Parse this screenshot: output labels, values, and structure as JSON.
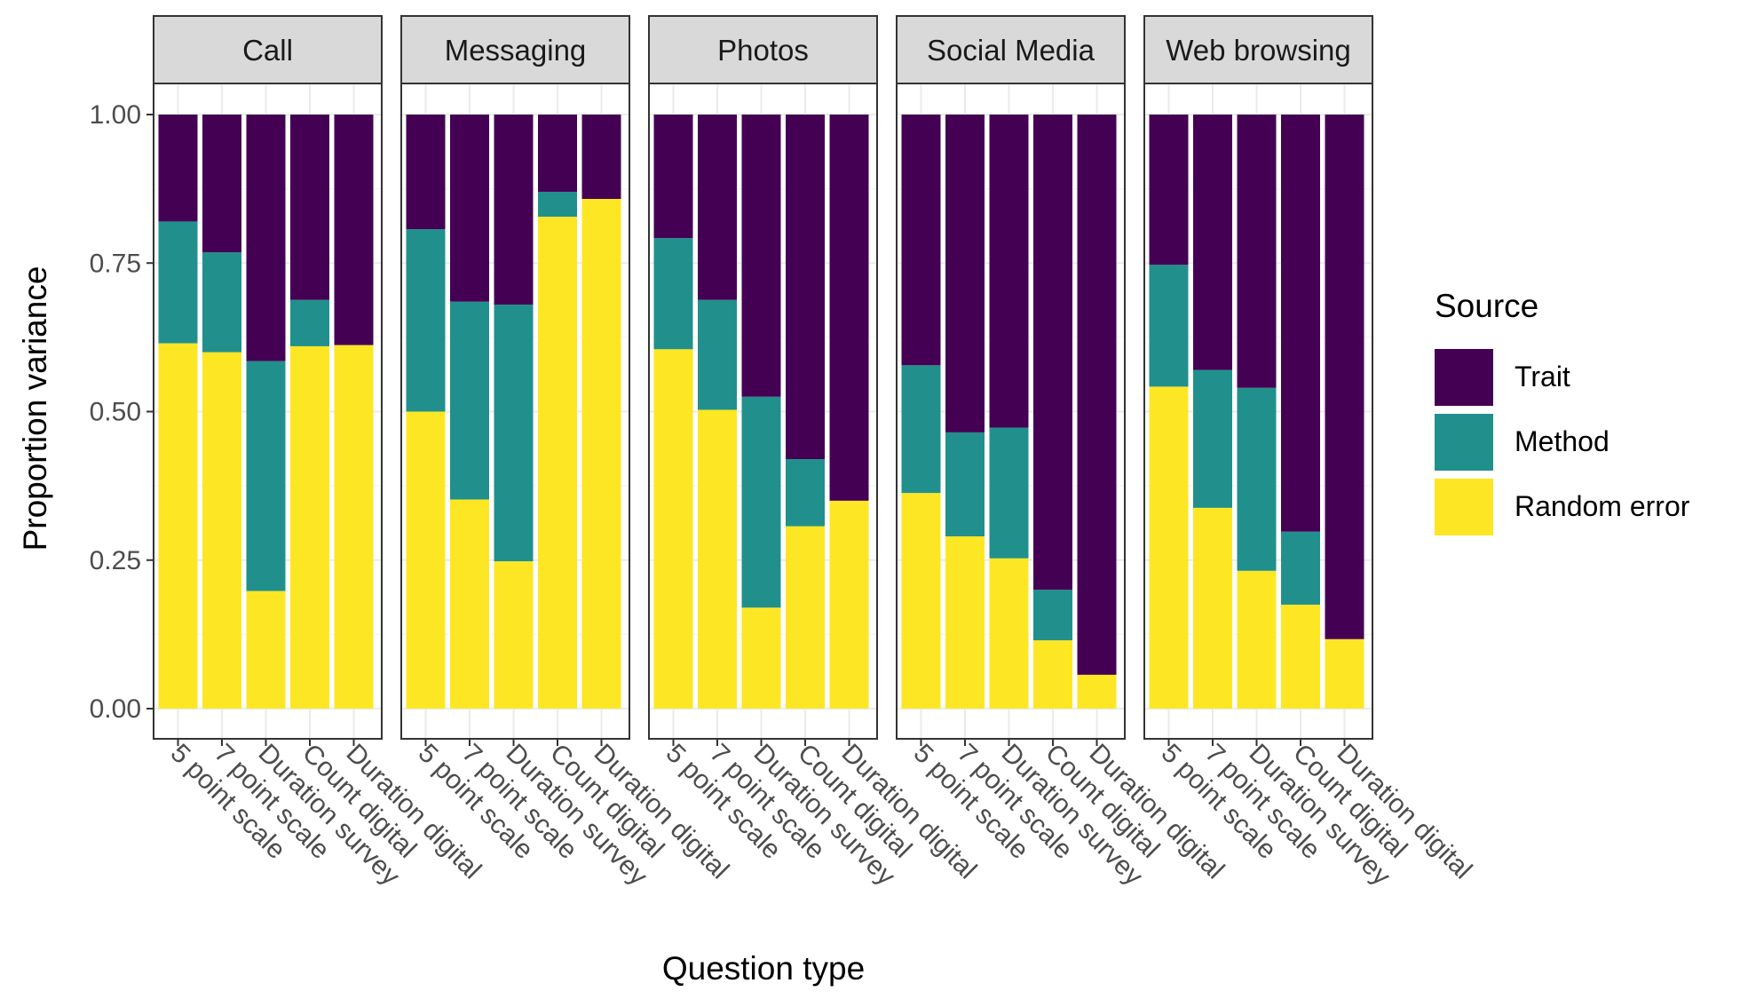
{
  "chart_data": {
    "type": "bar",
    "stacked": true,
    "normalized": true,
    "xlabel": "Question type",
    "ylabel": "Proportion variance",
    "ylim": [
      0,
      1
    ],
    "y_ticks": [
      "0.00",
      "0.25",
      "0.50",
      "0.75",
      "1.00"
    ],
    "grid": true,
    "legend": {
      "title": "Source",
      "position": "right",
      "entries": [
        {
          "name": "Trait",
          "color": "#440154"
        },
        {
          "name": "Method",
          "color": "#21908C"
        },
        {
          "name": "Random error",
          "color": "#FDE725"
        }
      ]
    },
    "categories": [
      "5 point scale",
      "7 point scale",
      "Duration survey",
      "Count digital",
      "Duration digital"
    ],
    "panels": [
      {
        "name": "Call",
        "series": [
          {
            "name": "Random error",
            "values": [
              0.615,
              0.6,
              0.198,
              0.61,
              0.612
            ]
          },
          {
            "name": "Method",
            "values": [
              0.205,
              0.168,
              0.387,
              0.078,
              0.0
            ]
          },
          {
            "name": "Trait",
            "values": [
              0.18,
              0.232,
              0.415,
              0.312,
              0.388
            ]
          }
        ]
      },
      {
        "name": "Messaging",
        "series": [
          {
            "name": "Random error",
            "values": [
              0.5,
              0.352,
              0.248,
              0.828,
              0.858
            ]
          },
          {
            "name": "Method",
            "values": [
              0.307,
              0.333,
              0.432,
              0.042,
              0.0
            ]
          },
          {
            "name": "Trait",
            "values": [
              0.193,
              0.315,
              0.32,
              0.13,
              0.142
            ]
          }
        ]
      },
      {
        "name": "Photos",
        "series": [
          {
            "name": "Random error",
            "values": [
              0.605,
              0.503,
              0.17,
              0.307,
              0.35
            ]
          },
          {
            "name": "Method",
            "values": [
              0.187,
              0.185,
              0.355,
              0.113,
              0.0
            ]
          },
          {
            "name": "Trait",
            "values": [
              0.208,
              0.312,
              0.475,
              0.58,
              0.65
            ]
          }
        ]
      },
      {
        "name": "Social Media",
        "series": [
          {
            "name": "Random error",
            "values": [
              0.363,
              0.29,
              0.253,
              0.115,
              0.057
            ]
          },
          {
            "name": "Method",
            "values": [
              0.215,
              0.175,
              0.22,
              0.085,
              0.0
            ]
          },
          {
            "name": "Trait",
            "values": [
              0.422,
              0.535,
              0.527,
              0.8,
              0.943
            ]
          }
        ]
      },
      {
        "name": "Web browsing",
        "series": [
          {
            "name": "Random error",
            "values": [
              0.542,
              0.338,
              0.232,
              0.175,
              0.117
            ]
          },
          {
            "name": "Method",
            "values": [
              0.205,
              0.232,
              0.308,
              0.123,
              0.0
            ]
          },
          {
            "name": "Trait",
            "values": [
              0.253,
              0.43,
              0.46,
              0.702,
              0.883
            ]
          }
        ]
      }
    ]
  }
}
